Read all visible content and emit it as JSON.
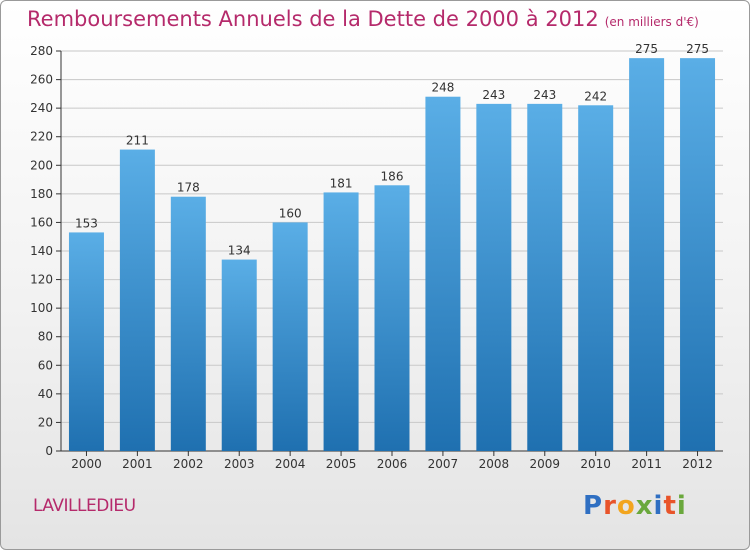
{
  "title": "Remboursements Annuels de la Dette de 2000 à 2012",
  "unit": "(en milliers d'€)",
  "commune": "LAVILLEDIEU",
  "logo": {
    "text": "Proxiti",
    "colors": [
      "#2f6fc2",
      "#e8542a",
      "#f2a51e",
      "#6aa83c",
      "#2f6fc2",
      "#e8542a",
      "#6aa83c"
    ]
  },
  "colors": {
    "title": "#b52a6b",
    "bar_top": "#5aaee6",
    "bar_bottom": "#1f70b0",
    "grid": "#c8c8c8",
    "axis": "#333333"
  },
  "chart_data": {
    "type": "bar",
    "title": "Remboursements Annuels de la Dette de 2000 à 2012",
    "categories": [
      "2000",
      "2001",
      "2002",
      "2003",
      "2004",
      "2005",
      "2006",
      "2007",
      "2008",
      "2009",
      "2010",
      "2011",
      "2012"
    ],
    "values": [
      153,
      211,
      178,
      134,
      160,
      181,
      186,
      248,
      243,
      243,
      242,
      275,
      275
    ],
    "ylim": [
      0,
      280
    ],
    "yticks": [
      0,
      20,
      40,
      60,
      80,
      100,
      120,
      140,
      160,
      180,
      200,
      220,
      240,
      260,
      280
    ],
    "xlabel": "",
    "ylabel": "",
    "grid": true
  }
}
